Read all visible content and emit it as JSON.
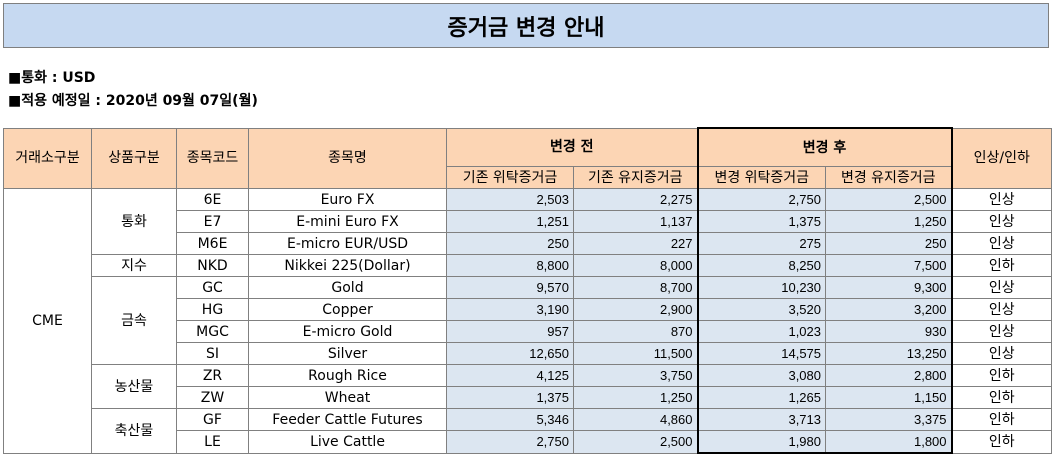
{
  "title": "증거금 변경 안내",
  "info": {
    "currency": "■통화 : USD",
    "effective_date": "■적용 예정일 : 2020년 09월 07일(월)"
  },
  "headers": {
    "exchange": "거래소구분",
    "category": "상품구분",
    "code": "종목코드",
    "name": "종목명",
    "before": "변경 전",
    "after": "변경 후",
    "before_initial": "기존 위탁증거금",
    "before_maint": "기존 유지증거금",
    "after_initial": "변경 위탁증거금",
    "after_maint": "변경 유지증거금",
    "change": "인상/인하"
  },
  "exchange": "CME",
  "categories": [
    "통화",
    "지수",
    "금속",
    "농산물",
    "축산물"
  ],
  "rows": [
    {
      "code": "6E",
      "name": "Euro FX",
      "b1": "2,503",
      "b2": "2,275",
      "a1": "2,750",
      "a2": "2,500",
      "chg": "인상"
    },
    {
      "code": "E7",
      "name": "E-mini Euro FX",
      "b1": "1,251",
      "b2": "1,137",
      "a1": "1,375",
      "a2": "1,250",
      "chg": "인상"
    },
    {
      "code": "M6E",
      "name": "E-micro EUR/USD",
      "b1": "250",
      "b2": "227",
      "a1": "275",
      "a2": "250",
      "chg": "인상"
    },
    {
      "code": "NKD",
      "name": "Nikkei 225(Dollar)",
      "b1": "8,800",
      "b2": "8,000",
      "a1": "8,250",
      "a2": "7,500",
      "chg": "인하"
    },
    {
      "code": "GC",
      "name": "Gold",
      "b1": "9,570",
      "b2": "8,700",
      "a1": "10,230",
      "a2": "9,300",
      "chg": "인상"
    },
    {
      "code": "HG",
      "name": "Copper",
      "b1": "3,190",
      "b2": "2,900",
      "a1": "3,520",
      "a2": "3,200",
      "chg": "인상"
    },
    {
      "code": "MGC",
      "name": "E-micro Gold",
      "b1": "957",
      "b2": "870",
      "a1": "1,023",
      "a2": "930",
      "chg": "인상"
    },
    {
      "code": "SI",
      "name": "Silver",
      "b1": "12,650",
      "b2": "11,500",
      "a1": "14,575",
      "a2": "13,250",
      "chg": "인상"
    },
    {
      "code": "ZR",
      "name": "Rough Rice",
      "b1": "4,125",
      "b2": "3,750",
      "a1": "3,080",
      "a2": "2,800",
      "chg": "인하"
    },
    {
      "code": "ZW",
      "name": "Wheat",
      "b1": "1,375",
      "b2": "1,250",
      "a1": "1,265",
      "a2": "1,150",
      "chg": "인하"
    },
    {
      "code": "GF",
      "name": "Feeder Cattle Futures",
      "b1": "5,346",
      "b2": "4,860",
      "a1": "3,713",
      "a2": "3,375",
      "chg": "인하"
    },
    {
      "code": "LE",
      "name": "Live Cattle",
      "b1": "2,750",
      "b2": "2,500",
      "a1": "1,980",
      "a2": "1,800",
      "chg": "인하"
    }
  ]
}
